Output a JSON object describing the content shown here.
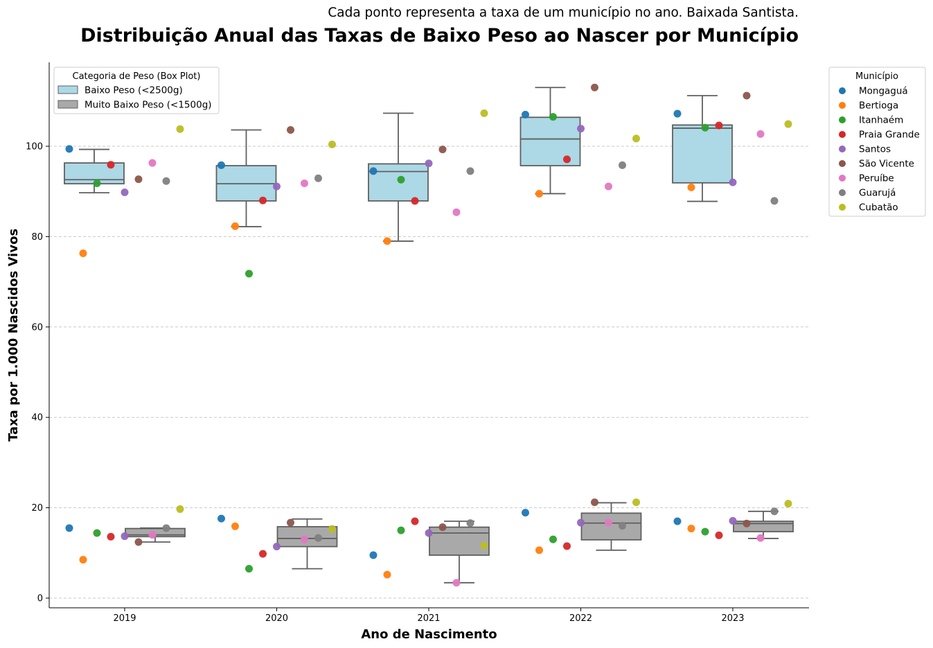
{
  "chart_data": {
    "type": "box",
    "title": "Distribuição Anual das Taxas de Baixo Peso ao Nascer por Município",
    "subtitle": "Cada ponto representa a taxa de um município no ano. Baixada Santista.",
    "xlabel": "Ano de Nascimento",
    "ylabel": "Taxa por 1.000 Nascidos Vivos",
    "categories": [
      "2019",
      "2020",
      "2021",
      "2022",
      "2023"
    ],
    "ylim": [
      -2,
      118
    ],
    "yticks": [
      0,
      20,
      40,
      60,
      80,
      100
    ],
    "grid": "horizontal dashed",
    "box_legend": {
      "title": "Categoria de Peso (Box Plot)",
      "placement": "top-left",
      "entries": [
        {
          "key": "baixo",
          "label": "Baixo Peso (<2500g)",
          "color": "#add8e6"
        },
        {
          "key": "muito",
          "label": "Muito Baixo Peso (<1500g)",
          "color": "#a9a9a9"
        }
      ]
    },
    "point_legend": {
      "title": "Município",
      "placement": "outside right",
      "entries": [
        {
          "name": "Mongaguá",
          "color": "#1f77b4"
        },
        {
          "name": "Bertioga",
          "color": "#ff7f0e"
        },
        {
          "name": "Itanhaém",
          "color": "#2ca02c"
        },
        {
          "name": "Praia Grande",
          "color": "#d62728"
        },
        {
          "name": "Santos",
          "color": "#9467bd"
        },
        {
          "name": "São Vicente",
          "color": "#8c564b"
        },
        {
          "name": "Peruíbe",
          "color": "#e377c2"
        },
        {
          "name": "Guarujá",
          "color": "#7f7f7f"
        },
        {
          "name": "Cubatão",
          "color": "#bcbd22"
        }
      ]
    },
    "boxes": {
      "baixo": [
        {
          "year": "2019",
          "whisker_low": 89.7,
          "q1": 91.7,
          "median": 92.6,
          "q3": 96.3,
          "whisker_high": 99.3
        },
        {
          "year": "2020",
          "whisker_low": 82.2,
          "q1": 87.9,
          "median": 91.7,
          "q3": 95.7,
          "whisker_high": 103.6
        },
        {
          "year": "2021",
          "whisker_low": 79.0,
          "q1": 87.9,
          "median": 94.4,
          "q3": 96.1,
          "whisker_high": 107.3
        },
        {
          "year": "2022",
          "whisker_low": 89.5,
          "q1": 95.7,
          "median": 101.6,
          "q3": 106.4,
          "whisker_high": 113.0
        },
        {
          "year": "2023",
          "whisker_low": 87.8,
          "q1": 91.9,
          "median": 104.0,
          "q3": 104.7,
          "whisker_high": 111.2
        }
      ],
      "muito": [
        {
          "year": "2019",
          "whisker_low": 12.4,
          "q1": 13.6,
          "median": 14.0,
          "q3": 15.4,
          "whisker_high": 15.5
        },
        {
          "year": "2020",
          "whisker_low": 6.5,
          "q1": 11.4,
          "median": 13.2,
          "q3": 15.8,
          "whisker_high": 17.5
        },
        {
          "year": "2021",
          "whisker_low": 3.4,
          "q1": 9.5,
          "median": 14.4,
          "q3": 15.7,
          "whisker_high": 17.0
        },
        {
          "year": "2022",
          "whisker_low": 10.6,
          "q1": 12.9,
          "median": 16.6,
          "q3": 18.8,
          "whisker_high": 21.1
        },
        {
          "year": "2023",
          "whisker_low": 13.2,
          "q1": 14.7,
          "median": 16.5,
          "q3": 17.0,
          "whisker_high": 19.2
        }
      ]
    },
    "points": {
      "baixo": {
        "2019": [
          99.4,
          76.3,
          91.8,
          95.9,
          89.8,
          92.7,
          96.3,
          92.3,
          103.8
        ],
        "2020": [
          95.8,
          82.3,
          71.8,
          88.0,
          91.1,
          103.6,
          91.8,
          92.9,
          100.4
        ],
        "2021": [
          94.5,
          79.0,
          92.6,
          87.9,
          96.2,
          99.3,
          85.4,
          94.5,
          107.3
        ],
        "2022": [
          107.0,
          89.5,
          106.5,
          97.1,
          103.9,
          113.0,
          91.1,
          95.8,
          101.7
        ],
        "2023": [
          107.2,
          90.9,
          104.1,
          104.6,
          92.0,
          111.2,
          102.7,
          87.9,
          104.9
        ]
      },
      "muito": {
        "2019": [
          15.5,
          8.5,
          14.4,
          13.6,
          13.7,
          12.4,
          14.0,
          15.5,
          19.7
        ],
        "2020": [
          17.6,
          15.9,
          6.5,
          9.8,
          11.4,
          16.7,
          13.0,
          13.3,
          15.3
        ],
        "2021": [
          9.5,
          5.2,
          15.0,
          17.0,
          14.4,
          15.7,
          3.4,
          16.6,
          11.6
        ],
        "2022": [
          18.9,
          10.6,
          13.0,
          11.5,
          16.7,
          21.2,
          16.7,
          16.0,
          21.2
        ],
        "2023": [
          17.0,
          15.4,
          14.7,
          13.9,
          17.1,
          16.5,
          13.3,
          19.2,
          20.9
        ]
      }
    }
  }
}
